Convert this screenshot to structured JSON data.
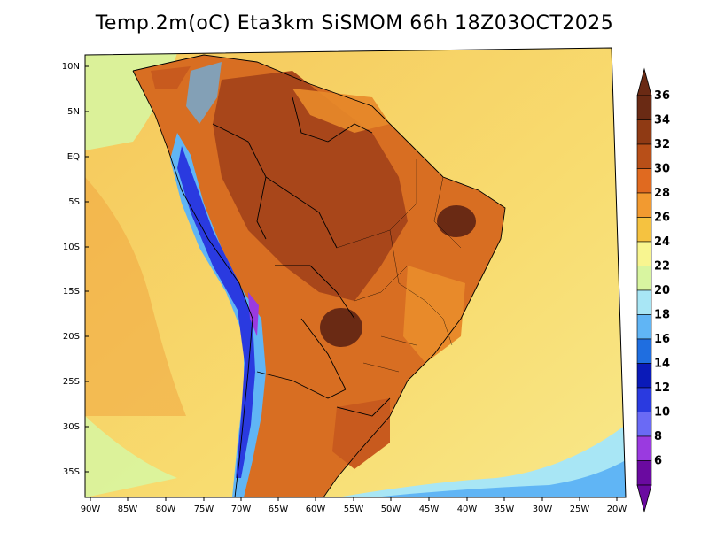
{
  "title": "Temp.2m(oC) Eta3km SiSMOM 66h 18Z03OCT2025",
  "axes": {
    "lat_labels": [
      "10N",
      "5N",
      "EQ",
      "5S",
      "10S",
      "15S",
      "20S",
      "25S",
      "30S",
      "35S"
    ],
    "lon_labels": [
      "90W",
      "85W",
      "80W",
      "75W",
      "70W",
      "65W",
      "60W",
      "55W",
      "50W",
      "45W",
      "40W",
      "35W",
      "30W",
      "25W",
      "20W"
    ]
  },
  "colorbar": {
    "labels": [
      "36",
      "34",
      "32",
      "30",
      "28",
      "26",
      "24",
      "22",
      "20",
      "18",
      "16",
      "14",
      "12",
      "10",
      "8",
      "6"
    ],
    "colors": [
      "#6a2a14",
      "#8f3a14",
      "#b84f18",
      "#e06a20",
      "#f29a30",
      "#f5c240",
      "#f8f590",
      "#d8f5a0",
      "#a8e6f5",
      "#60b5f5",
      "#1f6ee0",
      "#0a1ab8",
      "#2a3ae0",
      "#6a6af5",
      "#9a3ae0",
      "#6a0aa0"
    ]
  },
  "map_colors": {
    "ocean_warm": "#f5c75a",
    "ocean_mid": "#f8e07a",
    "land_hot": "#c85a1e",
    "land_very_hot": "#8f3a14",
    "land_warm": "#e8862a",
    "andes_cold": "#3a3ad8",
    "andes_cool": "#60b5f5",
    "southern_cool": "#a8e6f5",
    "pacific_cool": "#d8f5a0"
  }
}
